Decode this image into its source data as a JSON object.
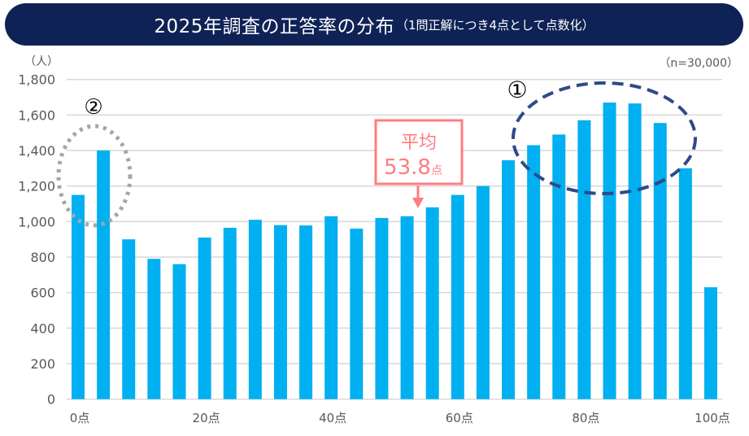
{
  "title": "2025年調査の正答率の分布",
  "subtitle": "（1問正解につき4点として点数化）",
  "chart_data": {
    "type": "bar",
    "title": "2025年調査の正答率の分布（1問正解につき4点として点数化）",
    "ylabel": "（人）",
    "note": "（n=30,000）",
    "ylim": [
      0,
      1800
    ],
    "yticks": [
      "0",
      "200",
      "400",
      "600",
      "800",
      "1,000",
      "1,200",
      "1,400",
      "1,600",
      "1,800"
    ],
    "ytick_values": [
      0,
      200,
      400,
      600,
      800,
      1000,
      1200,
      1400,
      1600,
      1800
    ],
    "xtick_labels": [
      "0点",
      "20点",
      "40点",
      "60点",
      "80点",
      "100点"
    ],
    "xtick_values": [
      0,
      20,
      40,
      60,
      80,
      100
    ],
    "x": [
      0,
      4,
      8,
      12,
      16,
      20,
      24,
      28,
      32,
      36,
      40,
      44,
      48,
      52,
      56,
      60,
      64,
      68,
      72,
      76,
      80,
      84,
      88,
      92,
      96,
      100
    ],
    "values": [
      1150,
      1400,
      900,
      790,
      760,
      910,
      965,
      1010,
      980,
      978,
      1030,
      960,
      1020,
      1030,
      1080,
      1150,
      1200,
      1345,
      1430,
      1490,
      1570,
      1670,
      1665,
      1555,
      1300,
      630
    ],
    "grid": true,
    "bar_color": "#00b0f0",
    "annotations": {
      "mean_label": "平均",
      "mean_value": "53.8",
      "mean_unit": "点",
      "mean_x": 53.8,
      "marker1": "①",
      "marker2": "②"
    }
  }
}
